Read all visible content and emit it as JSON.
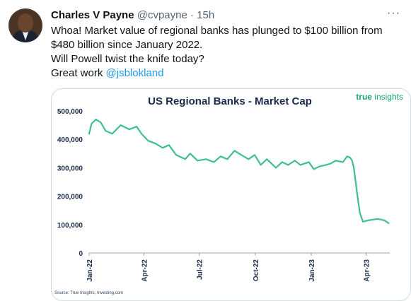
{
  "tweet": {
    "author_name": "Charles V Payne",
    "handle": "@cvpayne",
    "separator": "·",
    "time": "15h",
    "more_label": "···",
    "text_line1": "Whoa! Market value of regional banks has plunged to $100 billion from",
    "text_line2": "$480 billion since January 2022.",
    "text_line3": "Will Powell twist the knife today?",
    "text_line4_prefix": "Great work ",
    "mention": "@jsblokland"
  },
  "chart": {
    "brand_bold": "true",
    "brand_light": " insights",
    "source": "Source: True Insights, Investing.com"
  },
  "colors": {
    "line": "#3fbf8d",
    "title": "#1b2a4a",
    "brand": "#19a56a",
    "mention": "#1d9bf0"
  },
  "chart_data": {
    "type": "line",
    "title": "US Regional Banks - Market Cap",
    "ytick_labels": [
      "500,000",
      "400,000",
      "300,000",
      "200,000",
      "100,000",
      "0"
    ],
    "yticks": [
      500000,
      400000,
      300000,
      200000,
      100000,
      0
    ],
    "ylim": [
      0,
      500000
    ],
    "xtick_labels": [
      "Jan-22",
      "Apr-22",
      "Jul-22",
      "Oct-22",
      "Jan-23",
      "Apr-23"
    ],
    "xticks": [
      "2022-01-01",
      "2022-04-01",
      "2022-07-01",
      "2022-10-01",
      "2023-01-01",
      "2023-04-01"
    ],
    "grid": false,
    "legend": "none",
    "series": [
      {
        "x": [
          "2022-01-01",
          "2022-01-05",
          "2022-01-12",
          "2022-01-20",
          "2022-01-28",
          "2022-02-08",
          "2022-02-22",
          "2022-03-08",
          "2022-03-20",
          "2022-03-28",
          "2022-04-08",
          "2022-04-20",
          "2022-05-02",
          "2022-05-12",
          "2022-05-24",
          "2022-06-08",
          "2022-06-16",
          "2022-06-28",
          "2022-07-12",
          "2022-07-25",
          "2022-08-05",
          "2022-08-16",
          "2022-08-28",
          "2022-09-08",
          "2022-09-20",
          "2022-09-30",
          "2022-10-10",
          "2022-10-20",
          "2022-11-04",
          "2022-11-14",
          "2022-11-24",
          "2022-12-05",
          "2022-12-14",
          "2022-12-28",
          "2023-01-05",
          "2023-01-15",
          "2023-01-25",
          "2023-02-02",
          "2023-02-10",
          "2023-02-22",
          "2023-03-01",
          "2023-03-06",
          "2023-03-09",
          "2023-03-12",
          "2023-03-17",
          "2023-03-22",
          "2023-03-27",
          "2023-04-05",
          "2023-04-20",
          "2023-05-01",
          "2023-05-08"
        ],
        "y": [
          420000,
          455000,
          470000,
          460000,
          430000,
          420000,
          450000,
          435000,
          445000,
          420000,
          395000,
          385000,
          370000,
          380000,
          345000,
          330000,
          350000,
          325000,
          330000,
          320000,
          340000,
          330000,
          360000,
          345000,
          330000,
          345000,
          310000,
          330000,
          300000,
          320000,
          310000,
          325000,
          310000,
          320000,
          295000,
          305000,
          310000,
          315000,
          325000,
          320000,
          340000,
          335000,
          325000,
          300000,
          215000,
          140000,
          110000,
          115000,
          120000,
          115000,
          105000
        ]
      }
    ]
  }
}
